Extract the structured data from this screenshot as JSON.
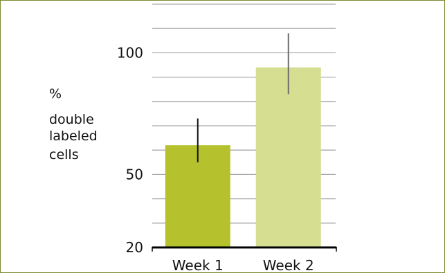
{
  "chart_data": {
    "type": "bar",
    "title": "",
    "xlabel": "",
    "ylabel_lines": [
      "%",
      "double",
      "labeled",
      "cells"
    ],
    "categories": [
      "Week 1",
      "Week 2"
    ],
    "values": [
      62,
      94
    ],
    "error_bars": [
      {
        "low": 55,
        "high": 73
      },
      {
        "low": 83,
        "high": 108
      }
    ],
    "ylim": [
      20,
      120
    ],
    "yticks": [
      20,
      50,
      100
    ],
    "ytick_labels": [
      "20",
      "50",
      "100"
    ],
    "gridlines": [
      30,
      40,
      60,
      70,
      80,
      90,
      110,
      120
    ],
    "grid": true,
    "legend": "none",
    "colors": {
      "bars": [
        "#b5c22e",
        "#d6de92"
      ],
      "error_bars": [
        "#111111",
        "#6d6d6d"
      ],
      "grid": "#a9a9a9",
      "axis": "#000000",
      "frame": "#7a8a2e"
    }
  }
}
